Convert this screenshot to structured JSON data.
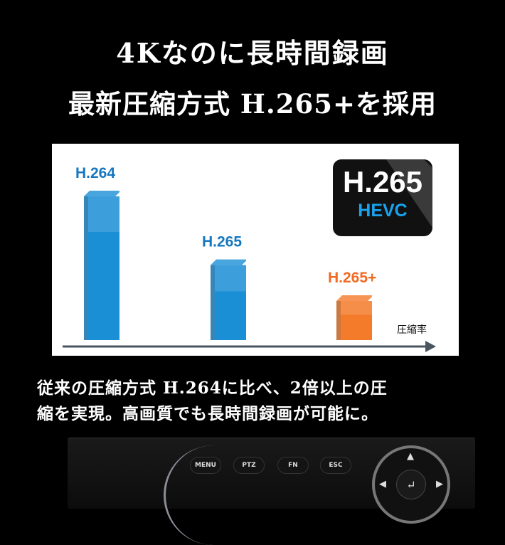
{
  "header": {
    "line1": "4Kなのに長時間録画",
    "line2": "最新圧縮方式 H.265+を採用"
  },
  "chart_data": {
    "type": "bar",
    "categories": [
      "H.264",
      "H.265",
      "H.265+"
    ],
    "values": [
      100,
      54,
      30
    ],
    "colors": [
      "#1a8fd6",
      "#1a8fd6",
      "#f47b2a"
    ],
    "label_colors": [
      "#1577bf",
      "#1577bf",
      "#f06a22"
    ],
    "xlabel": "圧縮率",
    "ylabel": "",
    "grid": false,
    "badge": {
      "main": "H.265",
      "sub": "HEVC"
    }
  },
  "caption": {
    "line1": "従来の圧縮方式 H.264に比べ、2倍以上の圧",
    "line2": "縮を実現。高画質でも長時間録画が可能に。"
  },
  "device": {
    "buttons": [
      "MENU",
      "PTZ",
      "FN",
      "ESC"
    ],
    "enter_icon": "↵"
  }
}
